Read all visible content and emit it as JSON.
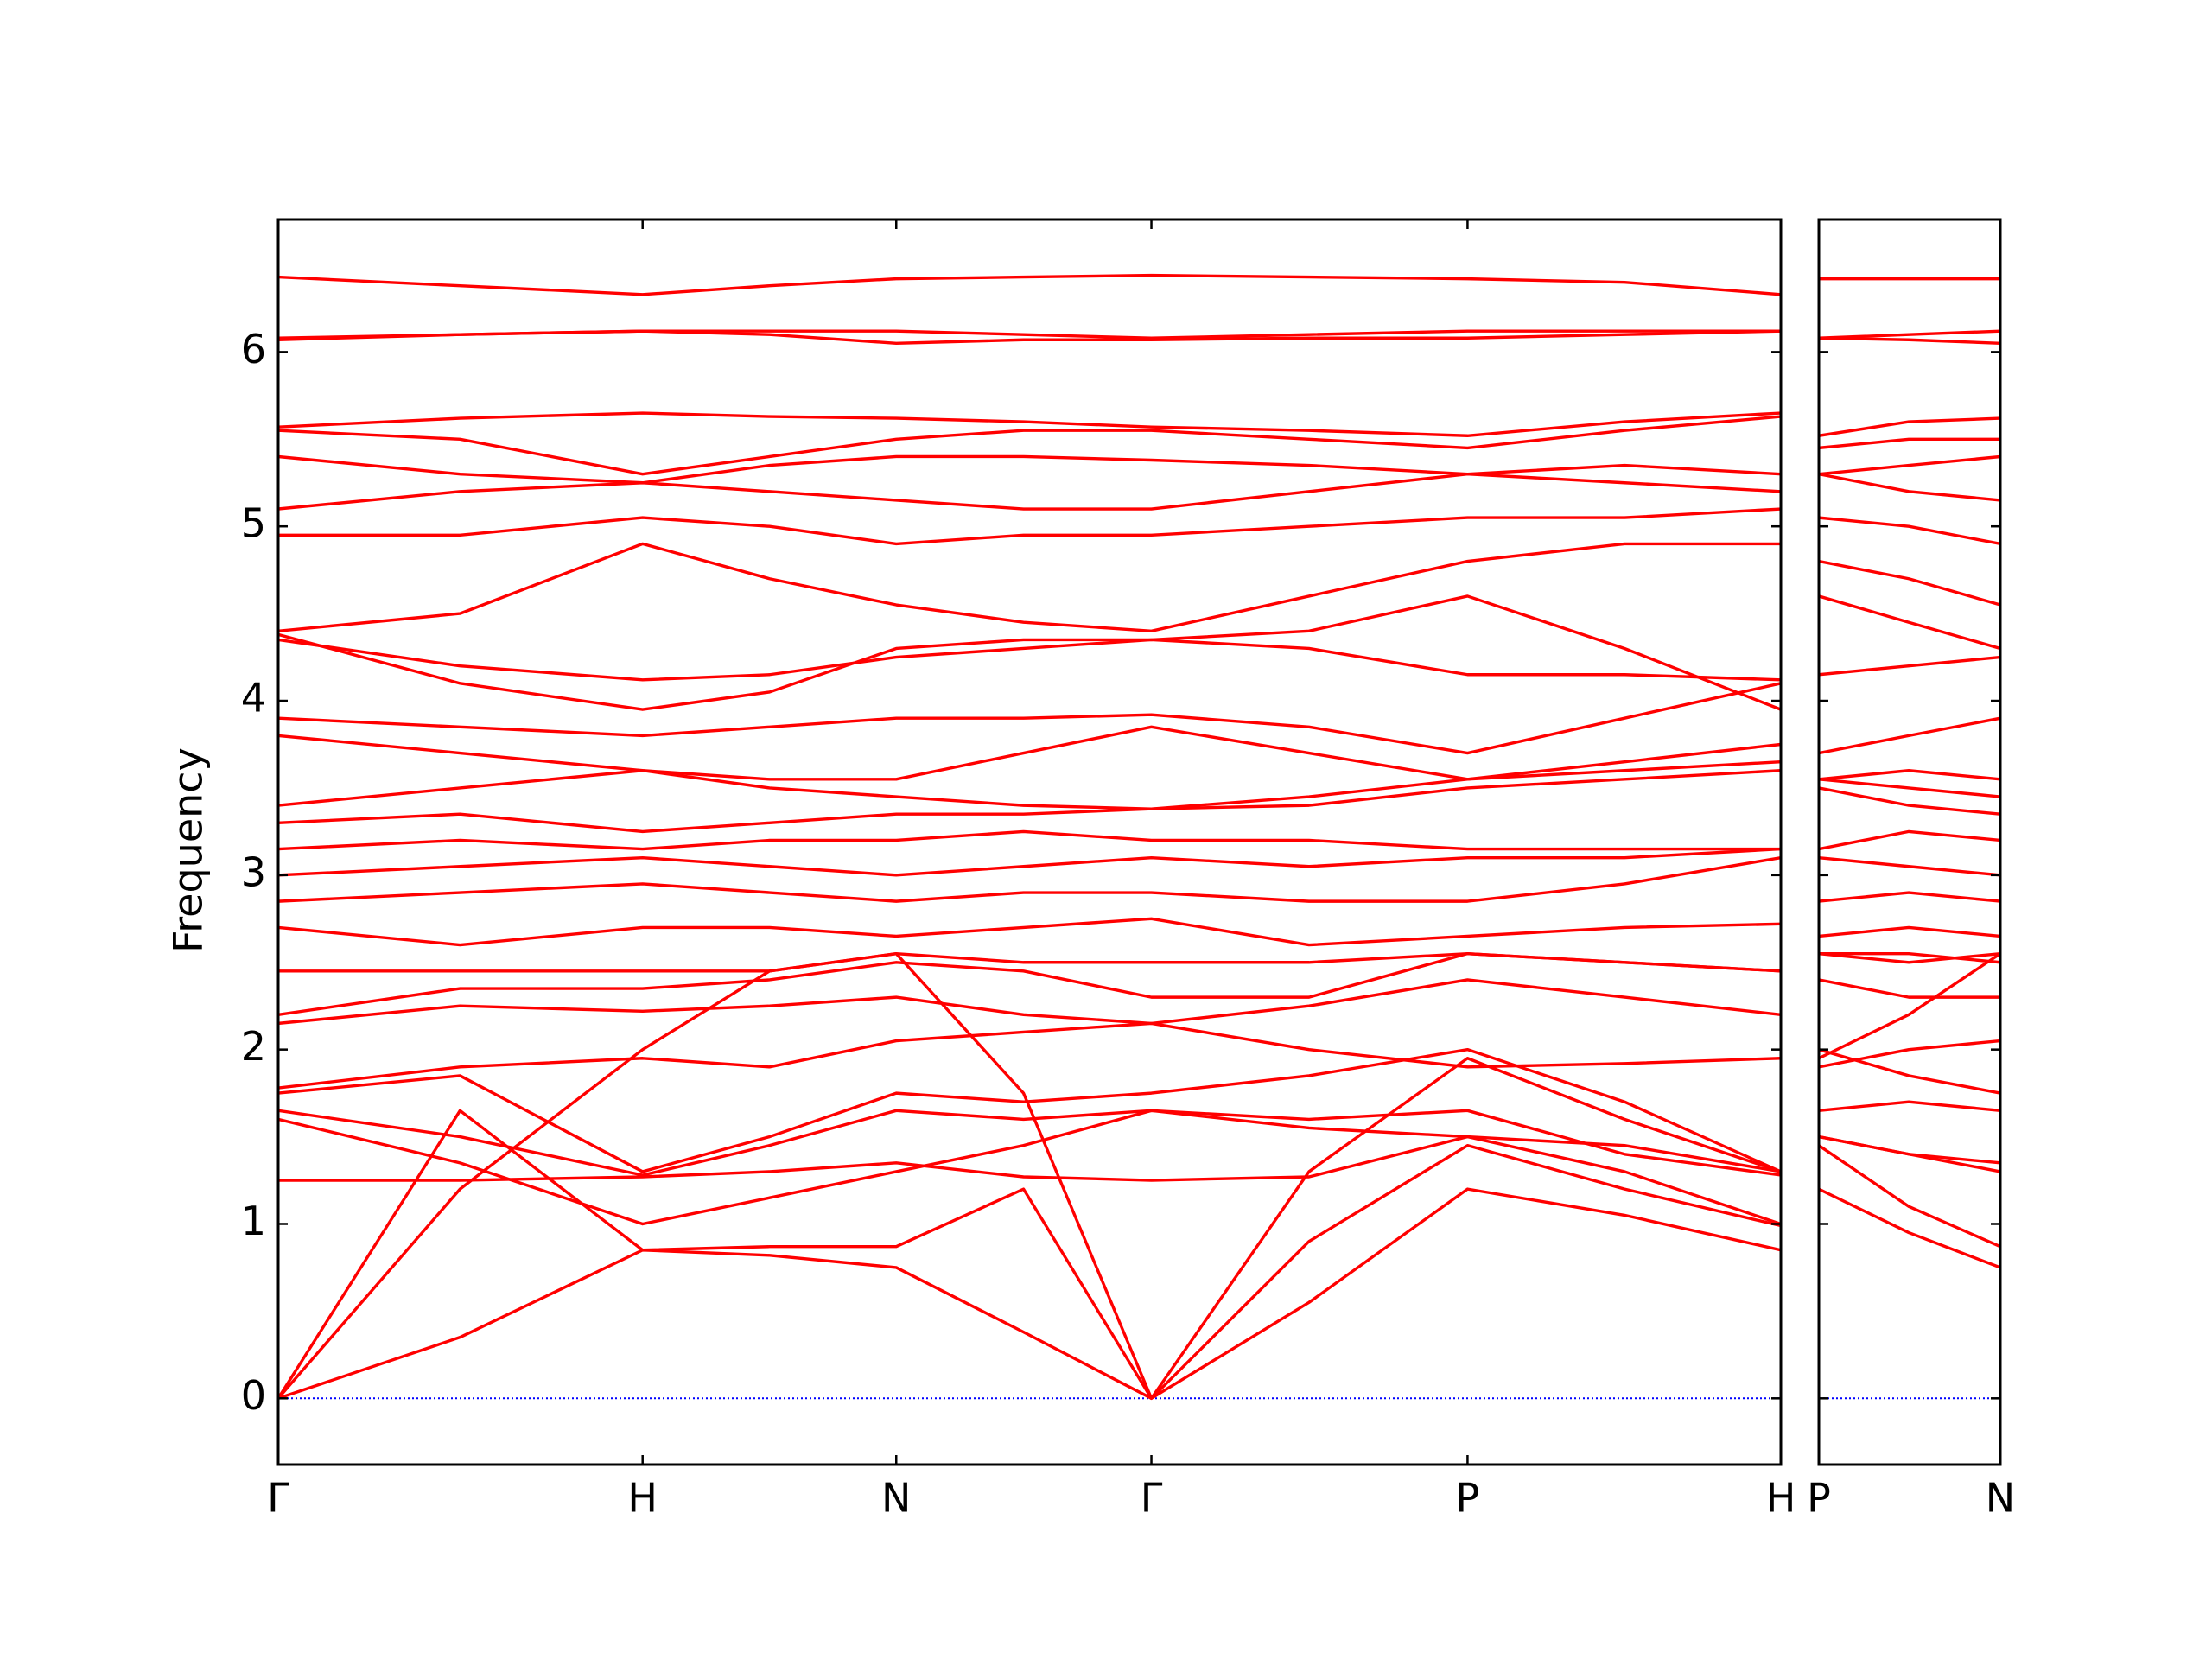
{
  "chart_data": [
    {
      "type": "line",
      "ylabel": "Frequency",
      "color": "#ff0000",
      "hline": 0,
      "hline_color": "#0000ff",
      "xlim": [
        0,
        1.0
      ],
      "xticks": [
        {
          "value": 0,
          "label": "Γ"
        },
        {
          "value": 0.2425,
          "label": "H"
        },
        {
          "value": 0.4113,
          "label": "N"
        },
        {
          "value": 0.5811,
          "label": "Γ"
        },
        {
          "value": 0.7915,
          "label": "P"
        },
        {
          "value": 1.0,
          "label": "H"
        }
      ],
      "ylim": [
        -0.38,
        6.76
      ],
      "yticks": [
        0,
        1,
        2,
        3,
        4,
        5,
        6
      ],
      "ytick_labels": true,
      "x": [
        0,
        0.121,
        0.2425,
        0.327,
        0.4113,
        0.496,
        0.5811,
        0.686,
        0.7915,
        0.896,
        1.0
      ],
      "series": [
        {
          "values": [
            0,
            0.35,
            0.85,
            0.82,
            0.75,
            0.38,
            0,
            0.55,
            1.2,
            1.05,
            0.85
          ]
        },
        {
          "values": [
            0,
            1.65,
            0.85,
            0.87,
            0.87,
            1.2,
            0,
            0.9,
            1.45,
            1.2,
            0.99
          ]
        },
        {
          "values": [
            0,
            1.2,
            2.0,
            2.45,
            2.55,
            1.75,
            0,
            1.3,
            1.95,
            1.6,
            1.3
          ]
        },
        {
          "values": [
            1.25,
            1.25,
            1.27,
            1.3,
            1.35,
            1.27,
            1.25,
            1.27,
            1.5,
            1.45,
            1.3
          ]
        },
        {
          "values": [
            1.6,
            1.35,
            1.0,
            1.15,
            1.3,
            1.45,
            1.65,
            1.55,
            1.5,
            1.3,
            1.0
          ]
        },
        {
          "values": [
            1.65,
            1.5,
            1.28,
            1.45,
            1.65,
            1.6,
            1.65,
            1.6,
            1.65,
            1.4,
            1.28
          ]
        },
        {
          "values": [
            1.75,
            1.85,
            1.3,
            1.5,
            1.75,
            1.7,
            1.75,
            1.85,
            2.0,
            1.7,
            1.3
          ]
        },
        {
          "values": [
            1.78,
            1.9,
            1.95,
            1.9,
            2.05,
            2.1,
            2.15,
            2.0,
            1.9,
            1.92,
            1.95
          ]
        },
        {
          "values": [
            2.15,
            2.25,
            2.22,
            2.25,
            2.3,
            2.2,
            2.15,
            2.25,
            2.4,
            2.3,
            2.2
          ]
        },
        {
          "values": [
            2.2,
            2.35,
            2.35,
            2.4,
            2.5,
            2.45,
            2.3,
            2.3,
            2.55,
            2.5,
            2.45
          ]
        },
        {
          "values": [
            2.45,
            2.45,
            2.45,
            2.45,
            2.55,
            2.5,
            2.5,
            2.5,
            2.55,
            2.5,
            2.45
          ]
        },
        {
          "values": [
            2.7,
            2.6,
            2.7,
            2.7,
            2.65,
            2.7,
            2.75,
            2.6,
            2.65,
            2.7,
            2.72
          ]
        },
        {
          "values": [
            2.85,
            2.9,
            2.95,
            2.9,
            2.85,
            2.9,
            2.9,
            2.85,
            2.85,
            2.95,
            3.1
          ]
        },
        {
          "values": [
            3.0,
            3.05,
            3.1,
            3.05,
            3.0,
            3.05,
            3.1,
            3.05,
            3.1,
            3.1,
            3.15
          ]
        },
        {
          "values": [
            3.15,
            3.2,
            3.15,
            3.2,
            3.2,
            3.25,
            3.2,
            3.2,
            3.15,
            3.15,
            3.15
          ]
        },
        {
          "values": [
            3.3,
            3.35,
            3.25,
            3.3,
            3.35,
            3.35,
            3.38,
            3.4,
            3.5,
            3.55,
            3.6
          ]
        },
        {
          "values": [
            3.4,
            3.5,
            3.6,
            3.5,
            3.45,
            3.4,
            3.38,
            3.45,
            3.55,
            3.6,
            3.65
          ]
        },
        {
          "values": [
            3.8,
            3.7,
            3.6,
            3.55,
            3.55,
            3.7,
            3.85,
            3.7,
            3.55,
            3.65,
            3.75
          ]
        },
        {
          "values": [
            3.9,
            3.85,
            3.8,
            3.85,
            3.9,
            3.9,
            3.92,
            3.85,
            3.7,
            3.9,
            4.1
          ]
        },
        {
          "values": [
            4.35,
            4.2,
            4.12,
            4.15,
            4.25,
            4.3,
            4.35,
            4.3,
            4.15,
            4.15,
            4.12
          ]
        },
        {
          "values": [
            4.38,
            4.1,
            3.95,
            4.05,
            4.3,
            4.35,
            4.35,
            4.4,
            4.6,
            4.3,
            3.95
          ]
        },
        {
          "values": [
            4.4,
            4.5,
            4.9,
            4.7,
            4.55,
            4.45,
            4.4,
            4.6,
            4.8,
            4.9,
            4.9
          ]
        },
        {
          "values": [
            4.95,
            4.95,
            5.05,
            5.0,
            4.9,
            4.95,
            4.95,
            5.0,
            5.05,
            5.05,
            5.1
          ]
        },
        {
          "values": [
            5.1,
            5.2,
            5.25,
            5.2,
            5.15,
            5.1,
            5.1,
            5.2,
            5.3,
            5.25,
            5.2
          ]
        },
        {
          "values": [
            5.4,
            5.3,
            5.25,
            5.35,
            5.4,
            5.4,
            5.38,
            5.35,
            5.3,
            5.35,
            5.3
          ]
        },
        {
          "values": [
            5.55,
            5.5,
            5.3,
            5.4,
            5.5,
            5.55,
            5.55,
            5.5,
            5.45,
            5.55,
            5.63
          ]
        },
        {
          "values": [
            5.57,
            5.62,
            5.65,
            5.63,
            5.62,
            5.6,
            5.57,
            5.55,
            5.52,
            5.6,
            5.65
          ]
        },
        {
          "values": [
            6.07,
            6.1,
            6.12,
            6.1,
            6.05,
            6.07,
            6.07,
            6.08,
            6.08,
            6.1,
            6.12
          ]
        },
        {
          "values": [
            6.08,
            6.1,
            6.12,
            6.12,
            6.12,
            6.1,
            6.08,
            6.1,
            6.12,
            6.12,
            6.12
          ]
        },
        {
          "values": [
            6.43,
            6.38,
            6.33,
            6.38,
            6.42,
            6.43,
            6.44,
            6.43,
            6.42,
            6.4,
            6.33
          ]
        }
      ]
    },
    {
      "type": "line",
      "color": "#ff0000",
      "hline": 0,
      "hline_color": "#0000ff",
      "xlim": [
        0,
        0.121
      ],
      "xticks": [
        {
          "value": 0,
          "label": "P"
        },
        {
          "value": 0.121,
          "label": "N"
        }
      ],
      "ylim": [
        -0.38,
        6.76
      ],
      "yticks": [
        0,
        1,
        2,
        3,
        4,
        5,
        6
      ],
      "ytick_labels": false,
      "x": [
        0,
        0.06,
        0.121
      ],
      "series": [
        {
          "values": [
            1.2,
            0.95,
            0.75
          ]
        },
        {
          "values": [
            1.45,
            1.1,
            0.87
          ]
        },
        {
          "values": [
            1.95,
            2.2,
            2.55
          ]
        },
        {
          "values": [
            1.5,
            1.4,
            1.35
          ]
        },
        {
          "values": [
            1.5,
            1.4,
            1.3
          ]
        },
        {
          "values": [
            1.65,
            1.7,
            1.65
          ]
        },
        {
          "values": [
            2.0,
            1.85,
            1.75
          ]
        },
        {
          "values": [
            1.9,
            2.0,
            2.05
          ]
        },
        {
          "values": [
            2.4,
            2.3,
            2.3
          ]
        },
        {
          "values": [
            2.55,
            2.55,
            2.5
          ]
        },
        {
          "values": [
            2.55,
            2.5,
            2.55
          ]
        },
        {
          "values": [
            2.65,
            2.7,
            2.65
          ]
        },
        {
          "values": [
            2.85,
            2.9,
            2.85
          ]
        },
        {
          "values": [
            3.1,
            3.05,
            3.0
          ]
        },
        {
          "values": [
            3.15,
            3.25,
            3.2
          ]
        },
        {
          "values": [
            3.5,
            3.4,
            3.35
          ]
        },
        {
          "values": [
            3.55,
            3.5,
            3.45
          ]
        },
        {
          "values": [
            3.55,
            3.6,
            3.55
          ]
        },
        {
          "values": [
            3.7,
            3.8,
            3.9
          ]
        },
        {
          "values": [
            4.15,
            4.2,
            4.25
          ]
        },
        {
          "values": [
            4.6,
            4.45,
            4.3
          ]
        },
        {
          "values": [
            4.8,
            4.7,
            4.55
          ]
        },
        {
          "values": [
            5.05,
            5.0,
            4.9
          ]
        },
        {
          "values": [
            5.3,
            5.2,
            5.15
          ]
        },
        {
          "values": [
            5.3,
            5.35,
            5.4
          ]
        },
        {
          "values": [
            5.45,
            5.5,
            5.5
          ]
        },
        {
          "values": [
            5.52,
            5.6,
            5.62
          ]
        },
        {
          "values": [
            6.08,
            6.07,
            6.05
          ]
        },
        {
          "values": [
            6.08,
            6.1,
            6.12
          ]
        },
        {
          "values": [
            6.42,
            6.42,
            6.42
          ]
        }
      ]
    }
  ]
}
